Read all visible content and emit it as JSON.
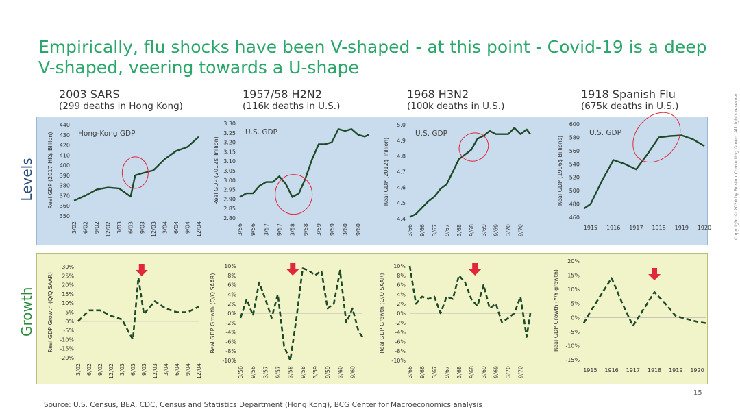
{
  "title": "Empirically, flu shocks have been V-shaped - at this point - Covid-19 is a deep V-shaped, veering towards a U-shape",
  "row_labels": {
    "levels": "Levels",
    "growth": "Growth"
  },
  "source": "Source: U.S. Census, BEA, CDC, Census and Statistics Department (Hong Kong), BCG Center for Macroeconomics analysis",
  "page_number": "15",
  "copyright": "Copyright © 2020 by Boston Consulting Group. All rights reserved.",
  "colors": {
    "line": "#1f4a2a",
    "circle": "#e0283a",
    "arrow": "#e0283a",
    "title": "#2aa66a"
  },
  "columns": [
    {
      "heading": "2003 SARS",
      "subheading": "(299 deaths in Hong Kong)"
    },
    {
      "heading": "1957/58 H2N2",
      "subheading": "(116k deaths in U.S.)"
    },
    {
      "heading": "1968 H3N2",
      "subheading": "(100k deaths in U.S.)"
    },
    {
      "heading": "1918 Spanish Flu",
      "subheading": "(675k deaths in U.S.)"
    }
  ],
  "chart_data": [
    {
      "type": "line",
      "row": "levels",
      "panel_label": "Hong-Kong GDP",
      "ylabel": "Real GDP (2017 HK$ Billion)",
      "ylim": [
        350,
        440
      ],
      "yticks": [
        350,
        360,
        370,
        380,
        390,
        400,
        410,
        420,
        430,
        440
      ],
      "categories": [
        "3/02",
        "6/02",
        "9/02",
        "12/02",
        "3/03",
        "6/03",
        "9/03",
        "12/03",
        "3/04",
        "6/04",
        "9/04",
        "12/04"
      ],
      "x": [
        0,
        1,
        2,
        3,
        4,
        5,
        5.4,
        6,
        7,
        8,
        9,
        10,
        11
      ],
      "y": [
        365,
        370,
        376,
        378,
        377,
        369,
        390,
        392,
        395,
        406,
        414,
        418,
        428
      ],
      "highlight_x": 5.4
    },
    {
      "type": "line",
      "row": "levels",
      "panel_label": "U.S. GDP",
      "ylabel": "Real GDP (2012$ Trillion)",
      "ylim": [
        2.8,
        3.3
      ],
      "yticks": [
        2.8,
        2.85,
        2.9,
        2.95,
        3.0,
        3.05,
        3.1,
        3.15,
        3.2,
        3.25,
        3.3
      ],
      "ytick_labels": [
        "2.80",
        "2.85",
        "2.90",
        "2.95",
        "3.00",
        "3.05",
        "3.10",
        "3.15",
        "3.20",
        "3.25",
        "3.30"
      ],
      "categories": [
        "3/56",
        "9/56",
        "3/57",
        "9/57",
        "3/58",
        "9/58",
        "3/59",
        "9/59",
        "3/60",
        "9/60"
      ],
      "x": [
        0,
        0.5,
        1,
        1.5,
        2,
        2.5,
        3,
        3.5,
        4,
        4.5,
        5,
        5.5,
        6,
        6.5,
        7,
        7.5,
        8,
        8.5,
        9,
        9.5,
        9.8
      ],
      "y": [
        2.91,
        2.93,
        2.93,
        2.97,
        2.99,
        2.99,
        3.02,
        2.98,
        2.91,
        2.93,
        3.01,
        3.11,
        3.19,
        3.19,
        3.2,
        3.27,
        3.26,
        3.27,
        3.24,
        3.23,
        3.24
      ],
      "highlight_x": 4.1
    },
    {
      "type": "line",
      "row": "levels",
      "panel_label": "U.S. GDP",
      "ylabel": "Real GDP (2012$ Trillion)",
      "ylim": [
        4.4,
        5.0
      ],
      "yticks": [
        4.4,
        4.5,
        4.6,
        4.7,
        4.8,
        4.9,
        5.0
      ],
      "ytick_labels": [
        "4.4",
        "4.5",
        "4.6",
        "4.7",
        "4.8",
        "4.9",
        "5.0"
      ],
      "categories": [
        "3/66",
        "9/66",
        "3/67",
        "9/67",
        "3/68",
        "9/68",
        "3/69",
        "9/69",
        "3/70",
        "9/70"
      ],
      "x": [
        0,
        0.5,
        1,
        1.5,
        2,
        2.5,
        3,
        3.5,
        4,
        4.5,
        5,
        5.5,
        6,
        6.5,
        7,
        7.5,
        8,
        8.5,
        9,
        9.5,
        9.8
      ],
      "y": [
        4.41,
        4.43,
        4.47,
        4.51,
        4.54,
        4.59,
        4.62,
        4.7,
        4.78,
        4.81,
        4.84,
        4.91,
        4.93,
        4.96,
        4.94,
        4.94,
        4.94,
        4.98,
        4.94,
        4.97,
        4.94
      ],
      "highlight_x": 5.2
    },
    {
      "type": "line",
      "row": "levels",
      "panel_label": "U.S. GDP",
      "ylabel": "Real GDP (1996$ Billions)",
      "ylim": [
        460,
        600
      ],
      "yticks": [
        460,
        480,
        500,
        520,
        540,
        560,
        580,
        600
      ],
      "categories": [
        "1915",
        "1916",
        "1917",
        "1918",
        "1919",
        "1920"
      ],
      "x": [
        -0.3,
        0,
        0.5,
        1,
        1.5,
        2,
        2.5,
        3,
        3.5,
        4,
        4.5,
        5
      ],
      "y": [
        473,
        480,
        515,
        546,
        540,
        532,
        555,
        580,
        582,
        583,
        577,
        567
      ],
      "highlight_x": 2.9
    },
    {
      "type": "line",
      "row": "growth",
      "ylabel": "Real GDP Growth (Q/Q SAAR)",
      "ylim": [
        -20,
        30
      ],
      "yticks": [
        -20,
        -15,
        -10,
        -5,
        0,
        5,
        10,
        15,
        20,
        25,
        30
      ],
      "ytick_labels": [
        "-20%",
        "-15%",
        "-10%",
        "-5%",
        "0%",
        "5%",
        "10%",
        "15%",
        "20%",
        "25%",
        "30%"
      ],
      "categories": [
        "3/02",
        "6/02",
        "9/02",
        "12/02",
        "3/03",
        "6/03",
        "9/03",
        "12/03",
        "3/04",
        "6/04",
        "9/04",
        "12/04"
      ],
      "x": [
        0,
        1,
        2,
        3,
        4,
        5,
        5.5,
        6,
        7,
        8,
        9,
        10,
        11
      ],
      "y": [
        0,
        6,
        6,
        3,
        1,
        -10,
        24,
        4,
        11,
        7,
        5,
        5,
        8
      ],
      "arrow_x": 5.8
    },
    {
      "type": "line",
      "row": "growth",
      "ylabel": "Real GDP Growth (Q/Q SAAR)",
      "ylim": [
        -10,
        10
      ],
      "yticks": [
        -10,
        -8,
        -6,
        -4,
        -2,
        0,
        2,
        4,
        6,
        8,
        10
      ],
      "ytick_labels": [
        "-10%",
        "-8%",
        "-6%",
        "-4%",
        "-2%",
        "0%",
        "2%",
        "4%",
        "6%",
        "8%",
        "10%"
      ],
      "categories": [
        "3/56",
        "9/56",
        "3/57",
        "9/57",
        "3/58",
        "9/58",
        "3/59",
        "9/59",
        "3/60",
        "9/60"
      ],
      "x": [
        0,
        0.5,
        1,
        1.5,
        2,
        2.5,
        3,
        3.5,
        4,
        4.5,
        5,
        5.5,
        6,
        6.5,
        7,
        7.5,
        8,
        8.5,
        9,
        9.5,
        9.8
      ],
      "y": [
        -1,
        3,
        -0.5,
        6.5,
        3,
        -1,
        4,
        -7,
        -10,
        -1,
        9.5,
        9,
        8,
        9,
        1,
        2,
        9,
        -2,
        1,
        -4,
        -5
      ],
      "arrow_x": 4.2
    },
    {
      "type": "line",
      "row": "growth",
      "ylabel": "Real GDP Growth (Q/Q SAAR)",
      "ylim": [
        -10,
        10
      ],
      "yticks": [
        -10,
        -8,
        -6,
        -4,
        -2,
        0,
        2,
        4,
        6,
        8,
        10
      ],
      "ytick_labels": [
        "-10%",
        "-8%",
        "-6%",
        "-4%",
        "-2%",
        "0%",
        "2%",
        "4%",
        "6%",
        "8%",
        "10%"
      ],
      "categories": [
        "3/66",
        "9/66",
        "3/67",
        "9/67",
        "3/68",
        "9/68",
        "3/69",
        "9/69",
        "3/70",
        "9/70"
      ],
      "x": [
        0,
        0.5,
        1,
        1.5,
        2,
        2.5,
        3,
        3.5,
        4,
        4.5,
        5,
        5.5,
        6,
        6.5,
        7,
        7.5,
        8,
        8.5,
        9,
        9.5,
        9.8
      ],
      "y": [
        10,
        2,
        3.5,
        3,
        3.5,
        0,
        3.5,
        3,
        8,
        6.5,
        3,
        1.5,
        6,
        1,
        2,
        -2,
        -1,
        0,
        3.5,
        -5,
        0
      ],
      "arrow_x": 5.3
    },
    {
      "type": "line",
      "row": "growth",
      "ylabel": "Real GDP Growth (Y/Y growth)",
      "ylim": [
        -15,
        20
      ],
      "yticks": [
        -15,
        -10,
        -5,
        0,
        5,
        10,
        15,
        20
      ],
      "ytick_labels": [
        "-15%",
        "-10%",
        "-5%",
        "0%",
        "5%",
        "10%",
        "15%",
        "20%"
      ],
      "categories": [
        "1915",
        "1916",
        "1917",
        "1918",
        "1919",
        "1920"
      ],
      "x": [
        -0.3,
        0,
        0.5,
        1,
        1.5,
        2,
        2.5,
        3,
        3.5,
        4,
        4.5,
        5,
        5.4
      ],
      "y": [
        -2,
        2,
        8,
        14,
        5,
        -3,
        3,
        9,
        5,
        0.5,
        -0.5,
        -1.5,
        -2
      ],
      "arrow_x": 3.0
    }
  ]
}
